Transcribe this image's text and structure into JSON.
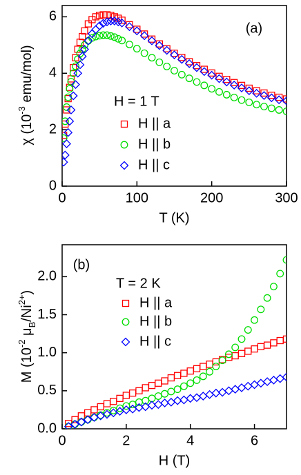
{
  "chart_data": [
    {
      "type": "scatter",
      "panel_label": "(a)",
      "xlabel": "T (K)",
      "ylabel": [
        "χ (10",
        "-3",
        " emu/mol)"
      ],
      "legend_title": "H = 1 T",
      "xlim": [
        0,
        300
      ],
      "xticks": [
        0,
        100,
        200,
        300
      ],
      "ylim": [
        0,
        6.4
      ],
      "yticks": [
        0,
        2,
        4,
        6
      ],
      "x": [
        2,
        4,
        6,
        8,
        10,
        12,
        15,
        18,
        21,
        24,
        27,
        30,
        35,
        40,
        45,
        50,
        55,
        60,
        65,
        70,
        75,
        80,
        90,
        100,
        110,
        120,
        130,
        140,
        150,
        160,
        170,
        180,
        190,
        200,
        210,
        220,
        230,
        240,
        250,
        260,
        270,
        280,
        290,
        300
      ],
      "series": [
        {
          "name": "H || a",
          "color": "#ff0000",
          "marker": "square",
          "values": [
            1.8,
            2.2,
            2.7,
            3.1,
            3.5,
            3.8,
            4.2,
            4.55,
            4.85,
            5.1,
            5.3,
            5.5,
            5.75,
            5.9,
            6.0,
            6.05,
            6.07,
            6.07,
            6.05,
            6.0,
            5.95,
            5.88,
            5.72,
            5.56,
            5.39,
            5.21,
            5.04,
            4.87,
            4.71,
            4.56,
            4.41,
            4.27,
            4.14,
            4.01,
            3.89,
            3.78,
            3.67,
            3.57,
            3.47,
            3.38,
            3.3,
            3.22,
            3.15,
            3.09
          ]
        },
        {
          "name": "H || b",
          "color": "#00dd00",
          "marker": "circle",
          "values": [
            1.7,
            2.3,
            2.8,
            3.15,
            3.45,
            3.7,
            4.0,
            4.25,
            4.5,
            4.7,
            4.85,
            5.0,
            5.15,
            5.25,
            5.3,
            5.33,
            5.35,
            5.35,
            5.32,
            5.28,
            5.22,
            5.16,
            5.02,
            4.87,
            4.71,
            4.55,
            4.39,
            4.24,
            4.09,
            3.95,
            3.82,
            3.69,
            3.57,
            3.45,
            3.34,
            3.24,
            3.14,
            3.05,
            2.97,
            2.89,
            2.82,
            2.76,
            2.7,
            2.65
          ]
        },
        {
          "name": "H || c",
          "color": "#0000ff",
          "marker": "diamond",
          "values": [
            0.85,
            1.1,
            1.5,
            1.9,
            2.3,
            2.7,
            3.2,
            3.6,
            4.0,
            4.3,
            4.6,
            4.85,
            5.15,
            5.4,
            5.55,
            5.68,
            5.77,
            5.82,
            5.85,
            5.85,
            5.82,
            5.78,
            5.65,
            5.5,
            5.33,
            5.15,
            4.98,
            4.81,
            4.65,
            4.49,
            4.34,
            4.2,
            4.06,
            3.93,
            3.81,
            3.69,
            3.58,
            3.48,
            3.38,
            3.29,
            3.21,
            3.13,
            3.06,
            3.02
          ]
        }
      ]
    },
    {
      "type": "scatter",
      "panel_label": "(b)",
      "xlabel": "H (T)",
      "ylabel": [
        "M (10",
        "-2",
        " μ",
        "B",
        "/Ni",
        "2+",
        ")"
      ],
      "legend_title": "T = 2 K",
      "xlim": [
        0,
        7
      ],
      "xticks": [
        0,
        2,
        4,
        6
      ],
      "ylim": [
        0,
        2.42
      ],
      "yticks": [
        {
          "value": 0,
          "label": "0.0"
        },
        0.5,
        {
          "value": 1,
          "label": "1.0"
        },
        1.5,
        {
          "value": 2,
          "label": "2.0"
        }
      ],
      "x": [
        0.2,
        0.4,
        0.6,
        0.8,
        1.0,
        1.2,
        1.4,
        1.6,
        1.8,
        2.0,
        2.2,
        2.4,
        2.6,
        2.8,
        3.0,
        3.2,
        3.4,
        3.6,
        3.8,
        4.0,
        4.2,
        4.4,
        4.6,
        4.8,
        5.0,
        5.2,
        5.4,
        5.6,
        5.8,
        6.0,
        6.2,
        6.4,
        6.6,
        6.8,
        7.0
      ],
      "series": [
        {
          "name": "H || a",
          "color": "#ff0000",
          "marker": "square",
          "values": [
            0.07,
            0.12,
            0.17,
            0.21,
            0.25,
            0.29,
            0.33,
            0.36,
            0.4,
            0.44,
            0.47,
            0.5,
            0.54,
            0.57,
            0.6,
            0.63,
            0.67,
            0.7,
            0.73,
            0.76,
            0.79,
            0.82,
            0.85,
            0.88,
            0.91,
            0.94,
            0.96,
            0.99,
            1.02,
            1.05,
            1.08,
            1.1,
            1.13,
            1.16,
            1.18
          ]
        },
        {
          "name": "H || b",
          "color": "#00dd00",
          "marker": "circle",
          "values": [
            0.03,
            0.06,
            0.09,
            0.12,
            0.15,
            0.18,
            0.21,
            0.24,
            0.27,
            0.3,
            0.32,
            0.35,
            0.37,
            0.4,
            0.43,
            0.46,
            0.49,
            0.52,
            0.56,
            0.6,
            0.64,
            0.69,
            0.75,
            0.82,
            0.9,
            0.98,
            1.07,
            1.18,
            1.3,
            1.43,
            1.57,
            1.72,
            1.87,
            2.04,
            2.22
          ]
        },
        {
          "name": "H || c",
          "color": "#0000ff",
          "marker": "diamond",
          "values": [
            0.03,
            0.06,
            0.09,
            0.12,
            0.15,
            0.17,
            0.19,
            0.21,
            0.23,
            0.25,
            0.26,
            0.28,
            0.29,
            0.31,
            0.32,
            0.34,
            0.35,
            0.37,
            0.38,
            0.4,
            0.41,
            0.43,
            0.45,
            0.47,
            0.48,
            0.5,
            0.52,
            0.54,
            0.56,
            0.58,
            0.6,
            0.62,
            0.64,
            0.66,
            0.68
          ]
        }
      ]
    }
  ]
}
